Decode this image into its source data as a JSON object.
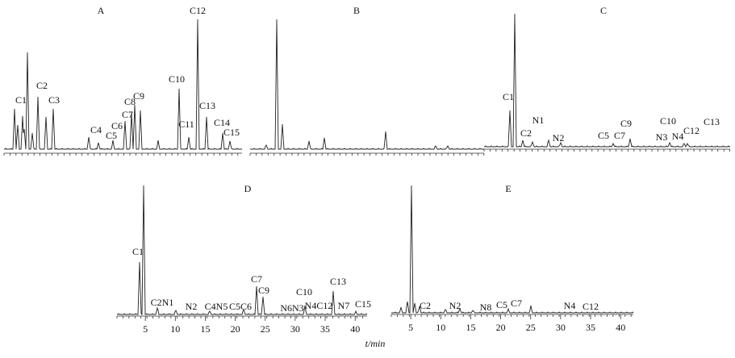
{
  "panels": [
    {
      "label": "A",
      "peaks": [
        "C1",
        "C2",
        "C3",
        "C4",
        "C5",
        "C6",
        "C7",
        "C8",
        "C9",
        "C10",
        "C11",
        "C12",
        "C13",
        "C14",
        "C15"
      ]
    },
    {
      "label": "B",
      "peaks": []
    },
    {
      "label": "C",
      "peaks": [
        "C1",
        "C2",
        "N1",
        "N2",
        "C5",
        "C7",
        "C9",
        "C10",
        "N3",
        "N4",
        "C12",
        "C13"
      ]
    },
    {
      "label": "D",
      "peaks": [
        "C1",
        "C2N1",
        "N2",
        "C4N5",
        "C5C6",
        "C7",
        "C9",
        "N6N3",
        "C10",
        "N4C12",
        "C13",
        "N7",
        "C15"
      ],
      "ticks": [
        5,
        10,
        15,
        20,
        25,
        30,
        35,
        40
      ]
    },
    {
      "label": "E",
      "peaks": [
        "C2",
        "N2",
        "N8",
        "C5",
        "C7",
        "N4",
        "C12"
      ],
      "ticks": [
        5,
        10,
        15,
        20,
        25,
        30,
        35,
        40
      ]
    }
  ],
  "axis_label": "t/min"
}
